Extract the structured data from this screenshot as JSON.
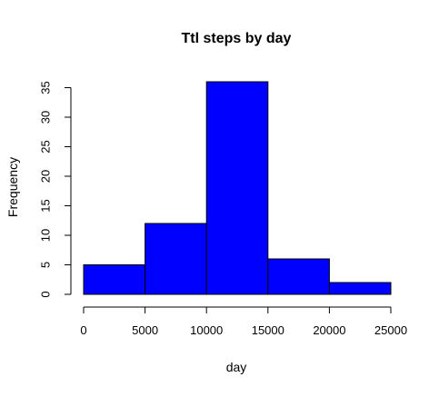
{
  "chart_data": {
    "type": "bar",
    "subtype": "histogram",
    "title": "Ttl steps by day",
    "xlabel": "day",
    "ylabel": "Frequency",
    "bins": [
      {
        "start": 0,
        "end": 5000,
        "value": 5
      },
      {
        "start": 5000,
        "end": 10000,
        "value": 12
      },
      {
        "start": 10000,
        "end": 15000,
        "value": 36
      },
      {
        "start": 15000,
        "end": 20000,
        "value": 6
      },
      {
        "start": 20000,
        "end": 25000,
        "value": 2
      }
    ],
    "x_ticks": [
      0,
      5000,
      10000,
      15000,
      20000,
      25000
    ],
    "y_ticks": [
      0,
      5,
      10,
      15,
      20,
      25,
      30,
      35
    ],
    "xlim": [
      0,
      25000
    ],
    "ylim": [
      0,
      36
    ],
    "grid": false,
    "legend": "none",
    "colors": {
      "bar_fill": "#0000ff",
      "bar_stroke": "#000000",
      "axis": "#000000",
      "background": "#ffffff"
    }
  }
}
